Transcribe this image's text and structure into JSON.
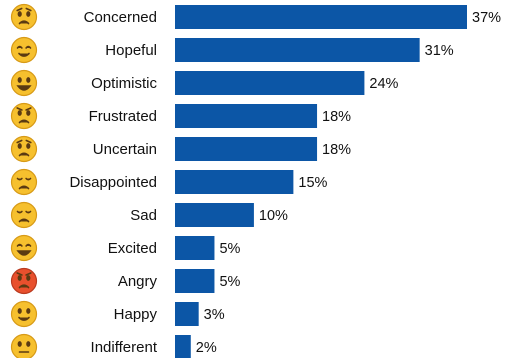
{
  "chart_data": {
    "type": "bar",
    "orientation": "horizontal",
    "title": "",
    "xlabel": "",
    "ylabel": "",
    "value_suffix": "%",
    "xlim": [
      0,
      37
    ],
    "bar_color": "#0c56a6",
    "categories": [
      "Concerned",
      "Hopeful",
      "Optimistic",
      "Frustrated",
      "Uncertain",
      "Disappointed",
      "Sad",
      "Excited",
      "Angry",
      "Happy",
      "Indifferent"
    ],
    "values": [
      37,
      31,
      24,
      18,
      18,
      15,
      10,
      5,
      5,
      3,
      2
    ],
    "value_labels": [
      "37%",
      "31%",
      "24%",
      "18%",
      "18%",
      "15%",
      "10%",
      "5%",
      "5%",
      "3%",
      "2%"
    ],
    "icons": [
      "worried-face-icon",
      "smiling-face-icon",
      "grinning-face-icon",
      "frustrated-face-icon",
      "uncertain-face-icon",
      "disappointed-face-icon",
      "sad-face-icon",
      "excited-face-icon",
      "angry-face-icon",
      "happy-face-icon",
      "indifferent-face-icon"
    ],
    "icon_colors": {
      "face": "#f6c02e",
      "angry_face": "#e8502d"
    }
  }
}
